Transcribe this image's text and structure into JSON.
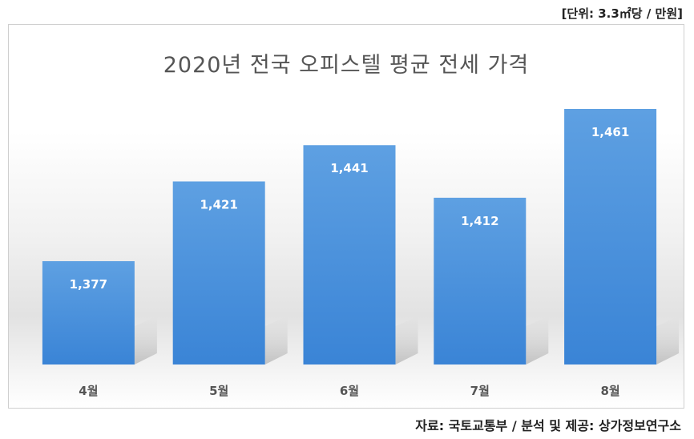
{
  "unit_note": "[단위: 3.3㎡당 / 만원]",
  "source_note": "자료: 국토교통부 / 분석 및 제공: 상가정보연구소",
  "colors": {
    "bar_top": "#5ea0e2",
    "bar_bottom": "#3a84d6",
    "label": "#ffffff",
    "category": "#555555"
  },
  "chart_data": {
    "type": "bar",
    "title": "2020년 전국 오피스텔 평균 전세 가격",
    "categories": [
      "4월",
      "5월",
      "6월",
      "7월",
      "8월"
    ],
    "values": [
      1377,
      1421,
      1441,
      1412,
      1461
    ],
    "value_labels": [
      "1,377",
      "1,421",
      "1,441",
      "1,412",
      "1,461"
    ],
    "ylim": [
      1320,
      1480
    ],
    "grid": false,
    "legend": "none"
  }
}
